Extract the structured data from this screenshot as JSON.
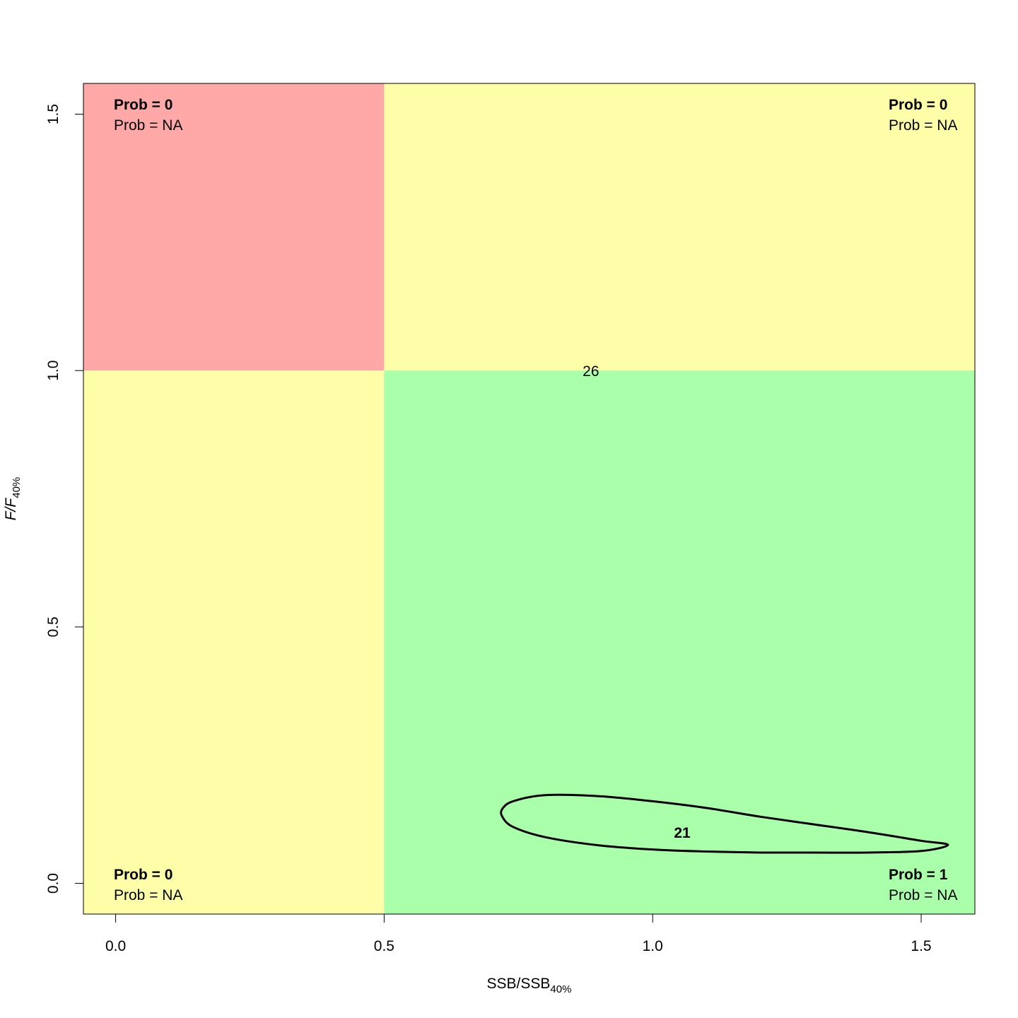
{
  "chart_data": {
    "type": "scatter",
    "title": "",
    "xlabel": {
      "main": "SSB/SSB",
      "sub": "40%"
    },
    "ylabel": {
      "main": "F/F",
      "sub": "40%"
    },
    "xlim": [
      -0.06,
      1.6
    ],
    "ylim": [
      -0.06,
      1.56
    ],
    "x_ticks": [
      0.0,
      0.5,
      1.0,
      1.5
    ],
    "y_ticks": [
      0.0,
      0.5,
      1.0,
      1.5
    ],
    "x_tick_labels": [
      "0.0",
      "0.5",
      "1.0",
      "1.5"
    ],
    "y_tick_labels": [
      "0.0",
      "0.5",
      "1.0",
      "1.5"
    ],
    "x_ref": 0.5,
    "y_ref": 1.0,
    "grid": false,
    "colors": {
      "overfished_overfishing": "#ffa8a8",
      "caution": "#fffea8",
      "healthy": "#aaffaa",
      "contour": "#000000"
    },
    "quadrants": [
      {
        "id": "top-left",
        "position": "top-left",
        "prob": "Prob = 0",
        "prob_secondary": "Prob = NA"
      },
      {
        "id": "top-right",
        "position": "top-right",
        "prob": "Prob = 0",
        "prob_secondary": "Prob = NA"
      },
      {
        "id": "bottom-left",
        "position": "bottom-left",
        "prob": "Prob = 0",
        "prob_secondary": "Prob = NA"
      },
      {
        "id": "bottom-right",
        "position": "bottom-right",
        "prob": "Prob = 1",
        "prob_secondary": "Prob = NA"
      }
    ],
    "points": [
      {
        "label": "26",
        "x": 0.885,
        "y": 1.0,
        "bold": false
      },
      {
        "label": "21",
        "x": 1.055,
        "y": 0.1,
        "bold": true
      }
    ],
    "contour": [
      [
        0.72,
        0.145
      ],
      [
        0.74,
        0.16
      ],
      [
        0.8,
        0.172
      ],
      [
        0.9,
        0.17
      ],
      [
        1.0,
        0.16
      ],
      [
        1.1,
        0.147
      ],
      [
        1.2,
        0.13
      ],
      [
        1.3,
        0.115
      ],
      [
        1.4,
        0.1
      ],
      [
        1.5,
        0.083
      ],
      [
        1.55,
        0.075
      ],
      [
        1.5,
        0.063
      ],
      [
        1.4,
        0.06
      ],
      [
        1.3,
        0.06
      ],
      [
        1.2,
        0.06
      ],
      [
        1.1,
        0.062
      ],
      [
        1.0,
        0.066
      ],
      [
        0.9,
        0.074
      ],
      [
        0.8,
        0.09
      ],
      [
        0.74,
        0.11
      ],
      [
        0.72,
        0.13
      ]
    ]
  }
}
